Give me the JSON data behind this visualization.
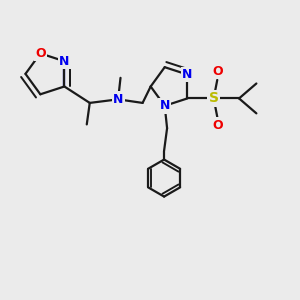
{
  "bg_color": "#ebebeb",
  "bond_color": "#1a1a1a",
  "bond_width": 1.6,
  "atom_colors": {
    "N": "#0000ee",
    "O": "#ee0000",
    "S": "#bbbb00",
    "C": "#1a1a1a"
  },
  "afs": 9,
  "figsize": [
    3.0,
    3.0
  ],
  "dpi": 100
}
